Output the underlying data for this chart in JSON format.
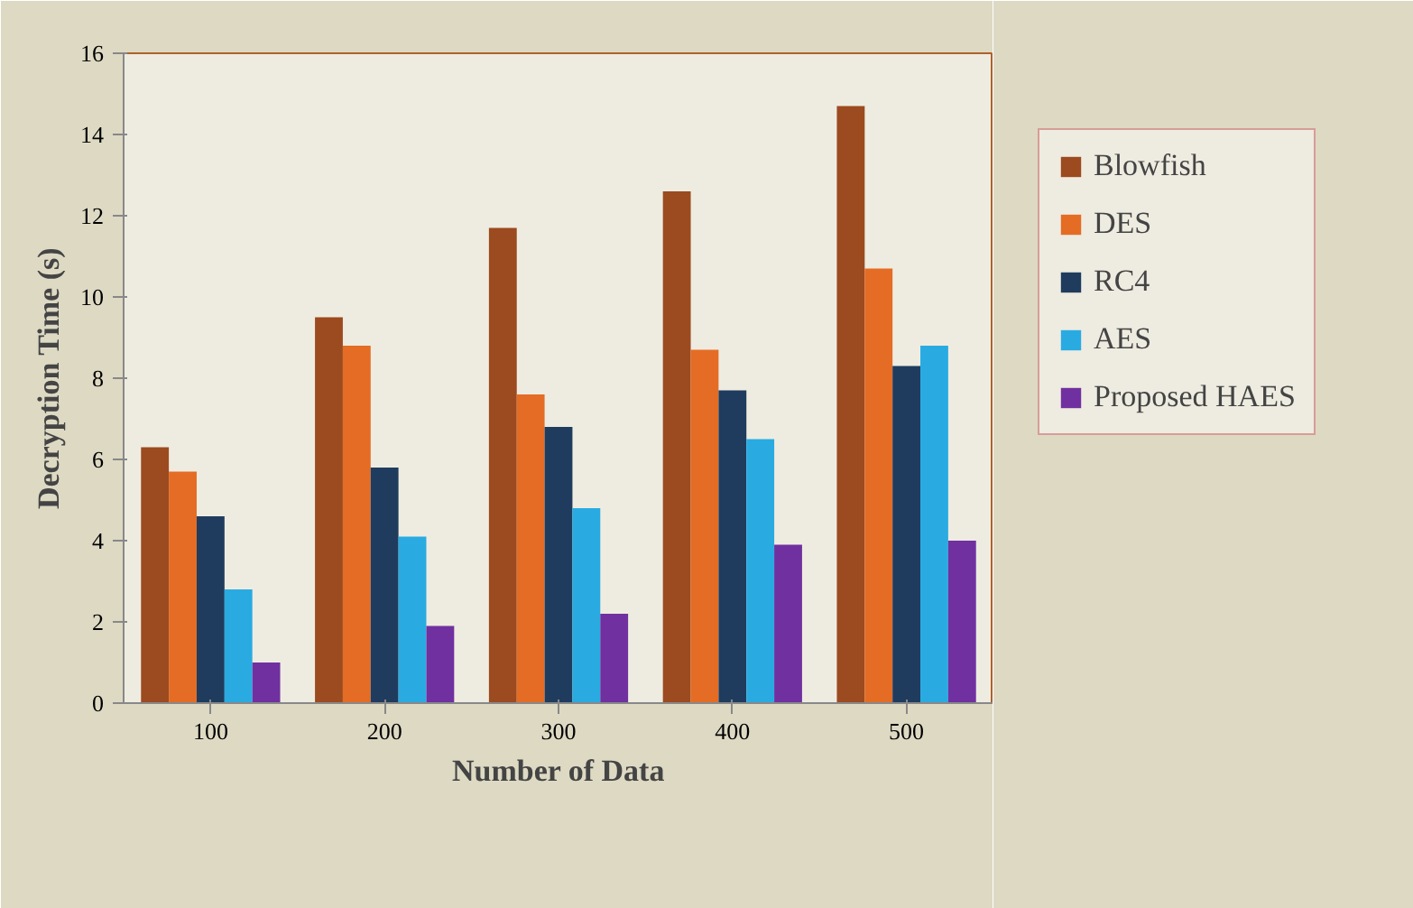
{
  "chart_data": {
    "type": "bar",
    "xlabel": "Number of Data",
    "ylabel": "Decryption Time (s)",
    "categories": [
      "100",
      "200",
      "300",
      "400",
      "500"
    ],
    "series": [
      {
        "name": "Blowfish",
        "color": "#9c4a1f",
        "values": [
          6.3,
          9.5,
          11.7,
          12.6,
          14.7
        ]
      },
      {
        "name": "DES",
        "color": "#e46c24",
        "values": [
          5.7,
          8.8,
          7.6,
          8.7,
          10.7
        ]
      },
      {
        "name": "RC4",
        "color": "#1f3c5e",
        "values": [
          4.6,
          5.8,
          6.8,
          7.7,
          8.3
        ]
      },
      {
        "name": "AES",
        "color": "#29abe2",
        "values": [
          2.8,
          4.1,
          4.8,
          6.5,
          8.8
        ]
      },
      {
        "name": "Proposed HAES",
        "color": "#7030a0",
        "values": [
          1.0,
          1.9,
          2.2,
          3.9,
          4.0
        ]
      }
    ],
    "ylim": [
      0,
      16
    ],
    "yticks": [
      0,
      2,
      4,
      6,
      8,
      10,
      12,
      14,
      16
    ],
    "grid": false,
    "legend": "right"
  }
}
